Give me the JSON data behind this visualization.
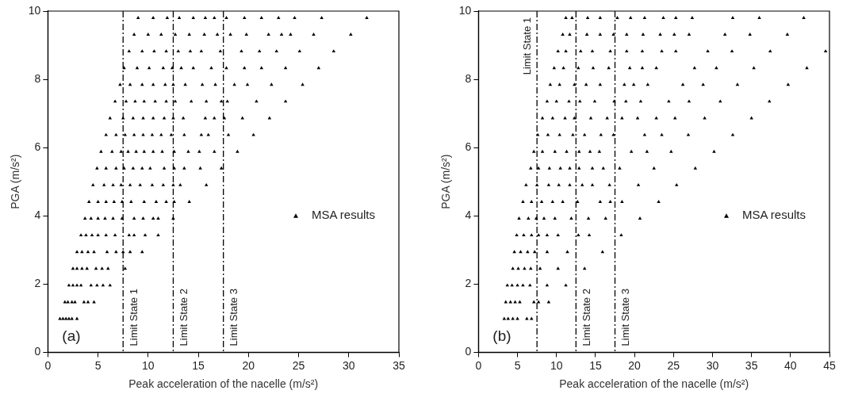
{
  "chart_data": [
    {
      "type": "scatter",
      "xlabel": "Peak acceleration of the nacelle (m/s²)",
      "ylabel": "PGA (m/s²)",
      "xlim": [
        0,
        35
      ],
      "xticks": [
        0,
        5,
        10,
        15,
        20,
        25,
        30,
        35
      ],
      "ylim": [
        0,
        10
      ],
      "yticks": [
        0,
        2,
        4,
        6,
        8,
        10
      ],
      "grid": false,
      "legend": "right",
      "marker": "triangle",
      "annotations": [
        "(a)"
      ],
      "ref_lines": [
        {
          "axis": "x",
          "value": 7.5,
          "label": "Limit State 1",
          "line_style": "dashdot"
        },
        {
          "axis": "x",
          "value": 12.5,
          "label": "Limit State 2",
          "line_style": "dashdot"
        },
        {
          "axis": "x",
          "value": 17.5,
          "label": "Limit State 3",
          "line_style": "dashdot"
        }
      ],
      "series": [
        {
          "name": "MSA results",
          "color": "#000000",
          "x": [
            1.2,
            1.5,
            1.8,
            2.1,
            2.4,
            2.9,
            1.7,
            2.0,
            2.4,
            2.7,
            3.6,
            4.0,
            4.6,
            2.1,
            2.5,
            2.9,
            3.3,
            4.3,
            4.9,
            5.5,
            6.2,
            2.5,
            2.9,
            3.4,
            3.9,
            4.8,
            5.4,
            6.0,
            7.7,
            2.9,
            3.4,
            4.0,
            4.6,
            5.9,
            6.8,
            7.5,
            8.2,
            9.4,
            3.3,
            3.8,
            4.4,
            5.0,
            5.8,
            6.7,
            8.1,
            8.6,
            9.7,
            11.0,
            3.7,
            4.3,
            5.0,
            5.7,
            6.5,
            7.4,
            8.6,
            9.5,
            10.5,
            11.0,
            12.5,
            4.1,
            5.0,
            5.8,
            6.6,
            7.4,
            8.3,
            9.6,
            10.8,
            11.8,
            12.6,
            14.1,
            4.5,
            5.6,
            6.5,
            7.3,
            8.2,
            9.2,
            10.4,
            11.5,
            12.5,
            13.2,
            15.8,
            4.9,
            5.8,
            6.8,
            7.6,
            8.5,
            9.4,
            10.2,
            11.6,
            12.6,
            13.6,
            15.2,
            17.3,
            5.3,
            6.4,
            7.3,
            8.0,
            8.8,
            9.6,
            10.5,
            11.4,
            12.6,
            14.0,
            15.1,
            16.6,
            18.9,
            5.8,
            6.8,
            7.7,
            8.6,
            9.5,
            10.4,
            11.3,
            12.3,
            13.6,
            15.3,
            16.0,
            18.0,
            20.5,
            6.2,
            7.5,
            8.5,
            9.5,
            10.5,
            11.6,
            12.5,
            13.5,
            15.7,
            16.6,
            17.6,
            19.4,
            22.1,
            6.7,
            7.8,
            8.7,
            9.6,
            10.7,
            11.8,
            12.7,
            14.3,
            15.8,
            17.3,
            17.9,
            20.8,
            23.7,
            7.2,
            8.2,
            9.4,
            10.5,
            11.7,
            12.5,
            13.7,
            15.4,
            16.7,
            18.6,
            19.9,
            22.3,
            25.4,
            7.6,
            8.9,
            10.1,
            11.5,
            12.4,
            13.3,
            14.5,
            16.3,
            17.8,
            19.6,
            21.3,
            23.7,
            27.0,
            8.1,
            9.4,
            10.6,
            11.8,
            13.0,
            14.2,
            15.3,
            17.2,
            19.3,
            21.1,
            22.8,
            25.1,
            28.5,
            8.6,
            10.0,
            11.3,
            12.7,
            14.1,
            15.6,
            16.9,
            18.2,
            19.8,
            22.0,
            23.3,
            24.2,
            26.5,
            30.2,
            9.0,
            10.5,
            11.9,
            13.1,
            14.5,
            15.7,
            16.6,
            17.8,
            19.6,
            21.3,
            23.0,
            24.6,
            27.3,
            31.8
          ],
          "values": [
            0.98,
            0.98,
            0.98,
            0.98,
            0.98,
            0.98,
            1.47,
            1.47,
            1.47,
            1.47,
            1.47,
            1.47,
            1.47,
            1.96,
            1.96,
            1.96,
            1.96,
            1.96,
            1.96,
            1.96,
            1.96,
            2.45,
            2.45,
            2.45,
            2.45,
            2.45,
            2.45,
            2.45,
            2.45,
            2.94,
            2.94,
            2.94,
            2.94,
            2.94,
            2.94,
            2.94,
            2.94,
            2.94,
            3.43,
            3.43,
            3.43,
            3.43,
            3.43,
            3.43,
            3.43,
            3.43,
            3.43,
            3.43,
            3.92,
            3.92,
            3.92,
            3.92,
            3.92,
            3.92,
            3.92,
            3.92,
            3.92,
            3.92,
            3.92,
            4.41,
            4.41,
            4.41,
            4.41,
            4.41,
            4.41,
            4.41,
            4.41,
            4.41,
            4.41,
            4.41,
            4.9,
            4.9,
            4.9,
            4.9,
            4.9,
            4.9,
            4.9,
            4.9,
            4.9,
            4.9,
            4.9,
            5.39,
            5.39,
            5.39,
            5.39,
            5.39,
            5.39,
            5.39,
            5.39,
            5.39,
            5.39,
            5.39,
            5.39,
            5.88,
            5.88,
            5.88,
            5.88,
            5.88,
            5.88,
            5.88,
            5.88,
            5.88,
            5.88,
            5.88,
            5.88,
            5.88,
            6.37,
            6.37,
            6.37,
            6.37,
            6.37,
            6.37,
            6.37,
            6.37,
            6.37,
            6.37,
            6.37,
            6.37,
            6.37,
            6.86,
            6.86,
            6.86,
            6.86,
            6.86,
            6.86,
            6.86,
            6.86,
            6.86,
            6.86,
            6.86,
            6.86,
            6.86,
            7.35,
            7.35,
            7.35,
            7.35,
            7.35,
            7.35,
            7.35,
            7.35,
            7.35,
            7.35,
            7.35,
            7.35,
            7.35,
            7.84,
            7.84,
            7.84,
            7.84,
            7.84,
            7.84,
            7.84,
            7.84,
            7.84,
            7.84,
            7.84,
            7.84,
            7.84,
            8.33,
            8.33,
            8.33,
            8.33,
            8.33,
            8.33,
            8.33,
            8.33,
            8.33,
            8.33,
            8.33,
            8.33,
            8.33,
            8.82,
            8.82,
            8.82,
            8.82,
            8.82,
            8.82,
            8.82,
            8.82,
            8.82,
            8.82,
            8.82,
            8.82,
            8.82,
            9.31,
            9.31,
            9.31,
            9.31,
            9.31,
            9.31,
            9.31,
            9.31,
            9.31,
            9.31,
            9.31,
            9.31,
            9.31,
            9.31,
            9.8,
            9.8,
            9.8,
            9.8,
            9.8,
            9.8,
            9.8,
            9.8,
            9.8,
            9.8,
            9.8,
            9.8,
            9.8,
            9.8
          ]
        }
      ]
    },
    {
      "type": "scatter",
      "xlabel": "Peak acceleration of the nacelle (m/s²)",
      "ylabel": "PGA (m/s²)",
      "xlim": [
        0,
        45
      ],
      "xticks": [
        0,
        5,
        10,
        15,
        20,
        25,
        30,
        35,
        40,
        45
      ],
      "ylim": [
        0,
        10
      ],
      "yticks": [
        0,
        2,
        4,
        6,
        8,
        10
      ],
      "grid": false,
      "legend": "right",
      "marker": "triangle",
      "annotations": [
        "(b)"
      ],
      "ref_lines": [
        {
          "axis": "x",
          "value": 7.5,
          "label": "Limit State 1",
          "line_style": "dashdot"
        },
        {
          "axis": "x",
          "value": 12.5,
          "label": "Limit State 2",
          "line_style": "dashdot"
        },
        {
          "axis": "x",
          "value": 17.5,
          "label": "Limit State 3",
          "line_style": "dashdot"
        }
      ],
      "series": [
        {
          "name": "MSA results",
          "color": "#000000",
          "x": [
            3.3,
            3.8,
            4.4,
            5.0,
            6.2,
            6.8,
            3.5,
            4.1,
            4.7,
            5.3,
            7.1,
            7.7,
            9.0,
            3.7,
            4.3,
            5.0,
            5.7,
            6.6,
            8.8,
            11.2,
            4.4,
            5.1,
            5.9,
            6.7,
            7.9,
            10.2,
            13.6,
            4.6,
            5.4,
            6.3,
            7.2,
            8.8,
            11.4,
            15.9,
            4.9,
            5.8,
            6.8,
            7.7,
            8.8,
            10.2,
            12.8,
            14.2,
            18.3,
            5.2,
            6.4,
            7.4,
            8.4,
            9.8,
            11.9,
            14.1,
            16.3,
            20.7,
            5.7,
            6.8,
            8.1,
            9.5,
            10.8,
            12.7,
            15.6,
            16.9,
            18.4,
            23.1,
            6.1,
            7.5,
            9.0,
            10.3,
            11.7,
            13.3,
            14.6,
            16.8,
            20.5,
            25.4,
            6.7,
            7.7,
            9.1,
            10.5,
            11.7,
            12.9,
            14.6,
            16.0,
            18.1,
            22.5,
            27.8,
            7.1,
            8.2,
            9.8,
            11.3,
            12.9,
            14.3,
            15.5,
            19.6,
            21.6,
            24.7,
            30.2,
            7.6,
            8.9,
            10.4,
            12.1,
            13.6,
            15.7,
            17.3,
            21.3,
            23.5,
            26.9,
            32.6,
            8.2,
            9.5,
            11.1,
            12.3,
            14.4,
            16.5,
            18.4,
            20.4,
            22.8,
            25.2,
            29.0,
            35.0,
            8.8,
            10.0,
            11.6,
            13.0,
            14.9,
            17.4,
            18.9,
            20.8,
            24.4,
            27.0,
            31.0,
            37.3,
            9.2,
            10.4,
            12.3,
            13.8,
            15.6,
            18.7,
            19.9,
            21.7,
            26.2,
            28.8,
            33.2,
            39.7,
            9.7,
            10.9,
            12.8,
            14.7,
            16.7,
            19.4,
            21.0,
            22.8,
            27.7,
            30.5,
            35.3,
            42.1,
            10.2,
            11.2,
            13.1,
            14.6,
            16.9,
            19.0,
            21.0,
            23.5,
            25.3,
            29.4,
            32.5,
            37.4,
            44.5,
            10.8,
            11.7,
            13.9,
            15.6,
            17.3,
            19.0,
            21.1,
            23.3,
            25.1,
            27.0,
            31.6,
            34.8,
            39.6,
            11.2,
            12.0,
            14.0,
            15.6,
            17.8,
            19.5,
            21.3,
            23.7,
            25.3,
            27.4,
            32.6,
            36.0,
            41.7
          ],
          "values": [
            0.98,
            0.98,
            0.98,
            0.98,
            0.98,
            0.98,
            1.47,
            1.47,
            1.47,
            1.47,
            1.47,
            1.47,
            1.47,
            1.96,
            1.96,
            1.96,
            1.96,
            1.96,
            1.96,
            1.96,
            2.45,
            2.45,
            2.45,
            2.45,
            2.45,
            2.45,
            2.45,
            2.94,
            2.94,
            2.94,
            2.94,
            2.94,
            2.94,
            2.94,
            3.43,
            3.43,
            3.43,
            3.43,
            3.43,
            3.43,
            3.43,
            3.43,
            3.43,
            3.92,
            3.92,
            3.92,
            3.92,
            3.92,
            3.92,
            3.92,
            3.92,
            3.92,
            4.41,
            4.41,
            4.41,
            4.41,
            4.41,
            4.41,
            4.41,
            4.41,
            4.41,
            4.41,
            4.9,
            4.9,
            4.9,
            4.9,
            4.9,
            4.9,
            4.9,
            4.9,
            4.9,
            4.9,
            5.39,
            5.39,
            5.39,
            5.39,
            5.39,
            5.39,
            5.39,
            5.39,
            5.39,
            5.39,
            5.39,
            5.88,
            5.88,
            5.88,
            5.88,
            5.88,
            5.88,
            5.88,
            5.88,
            5.88,
            5.88,
            5.88,
            6.37,
            6.37,
            6.37,
            6.37,
            6.37,
            6.37,
            6.37,
            6.37,
            6.37,
            6.37,
            6.37,
            6.86,
            6.86,
            6.86,
            6.86,
            6.86,
            6.86,
            6.86,
            6.86,
            6.86,
            6.86,
            6.86,
            6.86,
            7.35,
            7.35,
            7.35,
            7.35,
            7.35,
            7.35,
            7.35,
            7.35,
            7.35,
            7.35,
            7.35,
            7.35,
            7.84,
            7.84,
            7.84,
            7.84,
            7.84,
            7.84,
            7.84,
            7.84,
            7.84,
            7.84,
            7.84,
            7.84,
            8.33,
            8.33,
            8.33,
            8.33,
            8.33,
            8.33,
            8.33,
            8.33,
            8.33,
            8.33,
            8.33,
            8.33,
            8.82,
            8.82,
            8.82,
            8.82,
            8.82,
            8.82,
            8.82,
            8.82,
            8.82,
            8.82,
            8.82,
            8.82,
            8.82,
            9.31,
            9.31,
            9.31,
            9.31,
            9.31,
            9.31,
            9.31,
            9.31,
            9.31,
            9.31,
            9.31,
            9.31,
            9.31,
            9.8,
            9.8,
            9.8,
            9.8,
            9.8,
            9.8,
            9.8,
            9.8,
            9.8,
            9.8,
            9.8,
            9.8,
            9.8
          ]
        }
      ]
    }
  ]
}
